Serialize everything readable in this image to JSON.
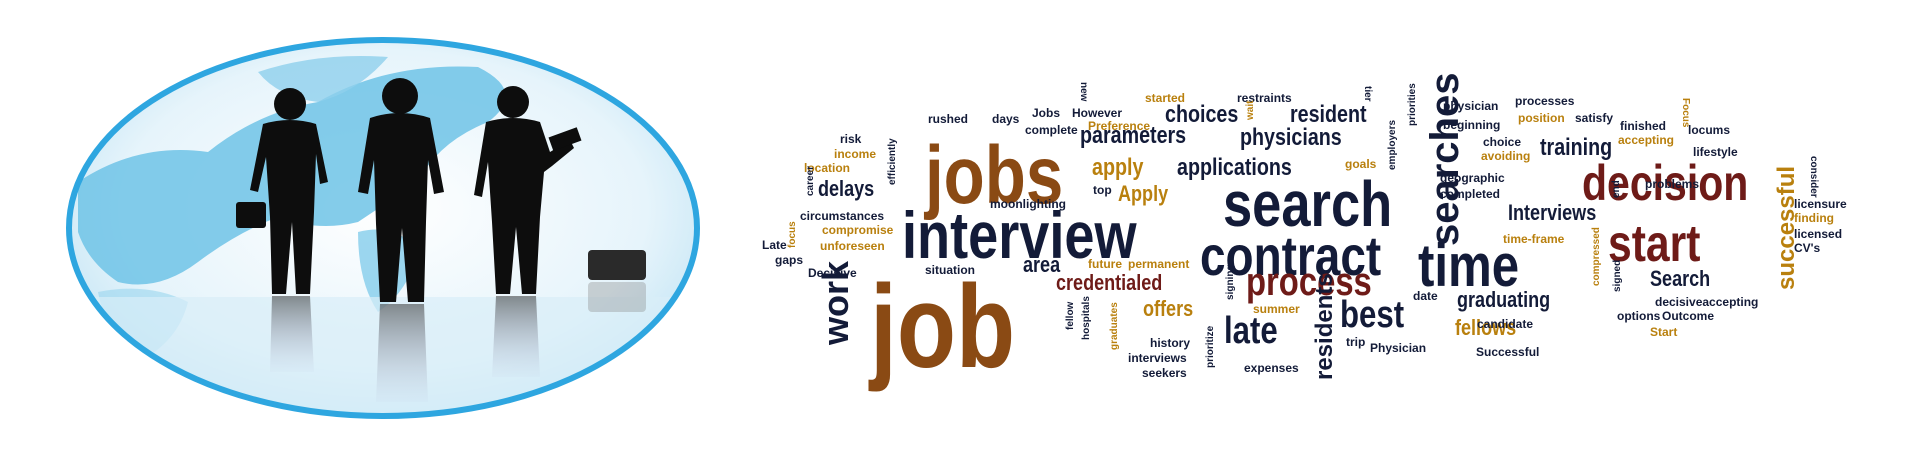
{
  "emblem": {
    "ring_color": "#2ea6e0",
    "globe_color": "#6fc3e6",
    "figure_color": "#0d0d0d"
  },
  "cloud": {
    "colors": {
      "navy": "#131b38",
      "brown": "#8a4a14",
      "gold": "#b9800e",
      "maroon": "#6e1b18",
      "slate": "#2e3a5c"
    },
    "words": {
      "job": "job",
      "jobs": "jobs",
      "interview": "interview",
      "search": "search",
      "decision": "decision",
      "contract": "contract",
      "time": "time",
      "start": "start",
      "process": "process",
      "best": "best",
      "late": "late",
      "searches": "searches",
      "work": "work",
      "successful": "successful",
      "parameters": "parameters",
      "physicians": "physicians",
      "choices": "choices",
      "resident": "resident",
      "applications": "applications",
      "apply": "apply",
      "Apply": "Apply",
      "delays": "delays",
      "training": "training",
      "Interviews": "Interviews",
      "credentialed": "credentialed",
      "offers": "offers",
      "area": "area",
      "graduating": "graduating",
      "fellows": "fellows",
      "Search": "Search",
      "residents": "residents",
      "decisiveaccepting": "decisiveaccepting",
      "started": "started",
      "restraints": "restraints",
      "physician": "physician",
      "processes": "processes",
      "Focus": "Focus",
      "rushed": "rushed",
      "days": "days",
      "Jobs": "Jobs",
      "However": "However",
      "Preference": "Preference",
      "complete": "complete",
      "position": "position",
      "satisfy": "satisfy",
      "beginning": "beginning",
      "finished": "finished",
      "accepting": "accepting",
      "locums": "locums",
      "risk": "risk",
      "income": "income",
      "location": "location",
      "goals": "goals",
      "choice": "choice",
      "avoiding": "avoiding",
      "lifestyle": "lifestyle",
      "geographic": "geographic",
      "completed": "completed",
      "top": "top",
      "moonlighting": "moonlighting",
      "circumstances": "circumstances",
      "compromise": "compromise",
      "unforeseen": "unforeseen",
      "Late": "Late",
      "gaps": "gaps",
      "Decisive": "Decisive",
      "situation": "situation",
      "future": "future",
      "permanent": "permanent",
      "licensure": "licensure",
      "finding": "finding",
      "licensed": "licensed",
      "CVs": "CV's",
      "time_frame": "time-frame",
      "summer": "summer",
      "date": "date",
      "candidate": "candidate",
      "options": "options",
      "Outcome": "Outcome",
      "problems": "problems",
      "Start": "Start",
      "history": "history",
      "interviews": "interviews",
      "seekers": "seekers",
      "expenses": "expenses",
      "trip": "trip",
      "Physician": "Physician",
      "Successful": "Successful",
      "efficiently": "efficiently",
      "career": "career",
      "focus": "focus",
      "new": "new",
      "wait": "wait",
      "tier": "tier",
      "priorities": "priorities",
      "employers": "employers",
      "compressed": "compressed",
      "signed": "signed",
      "consider": "consider",
      "fellow": "fellow",
      "hospitals": "hospitals",
      "graduates": "graduates",
      "signing": "signing",
      "prioritize": "prioritize",
      "end": "end"
    }
  }
}
